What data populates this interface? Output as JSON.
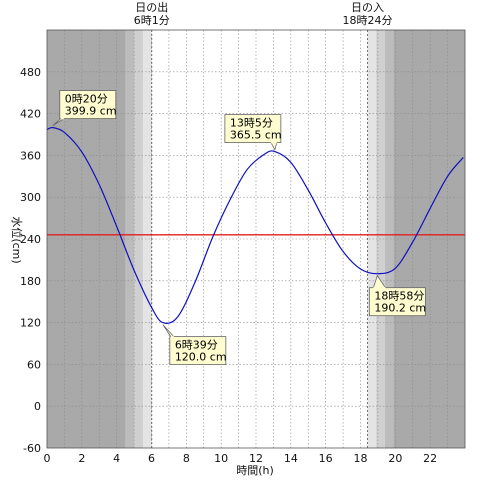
{
  "chart_data": {
    "type": "line",
    "xlabel": "時間(h)",
    "ylabel": "水位(cm)",
    "xlim": [
      0,
      24
    ],
    "ylim": [
      -60,
      540
    ],
    "x_ticks": [
      0,
      2,
      4,
      6,
      8,
      10,
      12,
      14,
      16,
      18,
      20,
      22
    ],
    "y_ticks": [
      -60,
      0,
      60,
      120,
      180,
      240,
      300,
      360,
      420,
      480
    ],
    "grid": true,
    "reference_line": {
      "y": 246,
      "color": "#e02020"
    },
    "sunrise": {
      "label": "日の出",
      "time_label": "6時1分",
      "x": 6.017
    },
    "sunset": {
      "label": "日の入",
      "time_label": "18時24分",
      "x": 18.4
    },
    "series": [
      {
        "color": "#1010c0",
        "x": [
          0.0,
          0.333,
          1.0,
          2.0,
          3.0,
          4.0,
          5.0,
          6.0,
          6.65,
          7.5,
          8.5,
          9.5,
          10.5,
          11.5,
          12.5,
          13.083,
          14.0,
          15.0,
          16.0,
          17.0,
          18.0,
          18.967,
          20.0,
          21.0,
          22.0,
          23.0,
          23.9
        ],
        "values": [
          397,
          399.9,
          393,
          365,
          318,
          258,
          195,
          142,
          120,
          128,
          178,
          242,
          296,
          340,
          362,
          365.5,
          350,
          310,
          263,
          222,
          197,
          190.2,
          198,
          236,
          284,
          330,
          357
        ]
      }
    ],
    "annotations": [
      {
        "time": "0時20分",
        "value": "399.9 cm",
        "x": 0.333,
        "y": 399.9
      },
      {
        "time": "6時39分",
        "value": "120.0 cm",
        "x": 6.65,
        "y": 120.0
      },
      {
        "time": "13時5分",
        "value": "365.5 cm",
        "x": 13.083,
        "y": 365.5
      },
      {
        "time": "18時58分",
        "value": "190.2 cm",
        "x": 18.967,
        "y": 190.2
      }
    ]
  }
}
